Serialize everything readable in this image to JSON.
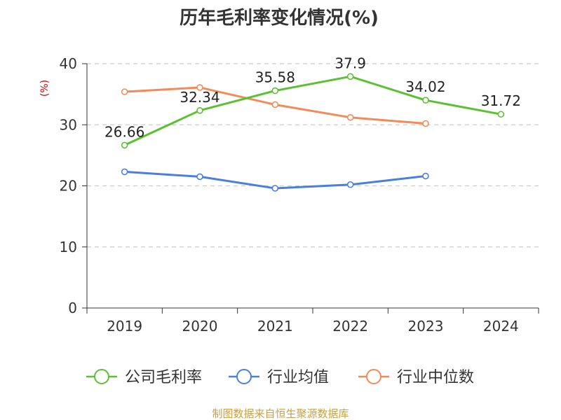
{
  "chart_data": {
    "type": "line",
    "title": "历年毛利率变化情况(%)",
    "ylabel": "(%)",
    "xlabel": "",
    "categories": [
      "2019",
      "2020",
      "2021",
      "2022",
      "2023",
      "2024"
    ],
    "ylim": [
      0,
      40
    ],
    "yticks": [
      0,
      10,
      20,
      30,
      40
    ],
    "grid": true,
    "legend_position": "bottom",
    "series": [
      {
        "name": "公司毛利率",
        "color": "#5cc132",
        "values": [
          26.66,
          32.34,
          35.58,
          37.9,
          34.02,
          31.72
        ],
        "labels": [
          "26.66",
          "32.34",
          "35.58",
          "37.9",
          "34.02",
          "31.72"
        ]
      },
      {
        "name": "行业均值",
        "color": "#4a7fdc",
        "values": [
          22.3,
          21.5,
          19.6,
          20.2,
          21.6,
          null
        ]
      },
      {
        "name": "行业中位数",
        "color": "#f28b59",
        "values": [
          35.4,
          36.1,
          33.3,
          31.2,
          30.2,
          null
        ]
      }
    ]
  },
  "source": "制图数据来自恒生聚源数据库",
  "colors": {
    "axis": "#333333",
    "grid": "#cccccc",
    "ylabel": "#cc0000",
    "source": "#c8a044"
  }
}
